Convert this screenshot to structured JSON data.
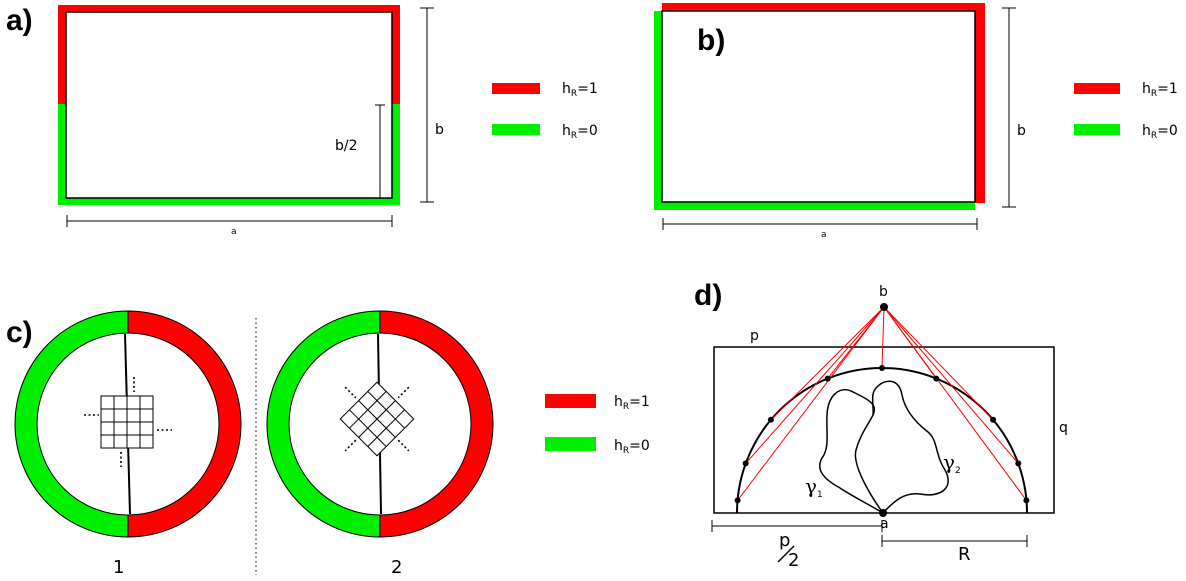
{
  "panels": {
    "a": {
      "label": "a)",
      "dim_a": "a",
      "dim_b": "b",
      "dim_b_half": "b/2"
    },
    "b": {
      "label": "b)",
      "dim_a": "a",
      "dim_b": "b"
    },
    "c": {
      "label": "c)",
      "circle1": "1",
      "circle2": "2",
      "dots": "⋮"
    },
    "d": {
      "label": "d)",
      "pt_b": "b",
      "pt_a": "a",
      "side_p": "p",
      "side_q": "q",
      "radius": "R",
      "half_p_num": "p",
      "half_p_den": "2",
      "gamma": "γ",
      "sub1": "1",
      "sub2": "2"
    }
  },
  "legend": {
    "h": "h",
    "sub": "R",
    "red_value": "=1",
    "green_value": "=0"
  },
  "colors": {
    "red": "#ff0000",
    "green": "#00ee00",
    "line": "#000000"
  }
}
